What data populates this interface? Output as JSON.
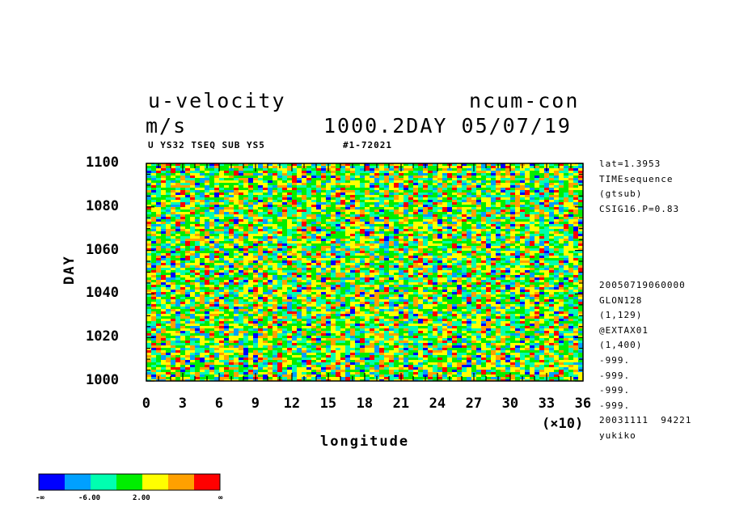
{
  "header": {
    "title_left": "u-velocity",
    "title_right": "ncum-con",
    "units": "m/s",
    "time_stamp": "1000.2DAY 05/07/19",
    "sub_left": "U YS32 TSEQ SUB YS5",
    "sub_right": "#1-72021"
  },
  "side_info": {
    "top": [
      "lat=1.3953",
      "TIMEsequence",
      "(gtsub)",
      "CSIG16.P=0.83"
    ],
    "bottom": [
      "20050719060000",
      "GLON128",
      "(1,129)",
      "@EXTAX01",
      "(1,400)",
      "-999.",
      "-999.",
      "-999.",
      "-999.",
      "20031111  94221",
      "yukiko"
    ]
  },
  "chart_data": {
    "type": "heatmap",
    "title": "u-velocity",
    "xlabel": "longitude",
    "ylabel": "DAY",
    "x_multiplier_label": "(×10)",
    "xlim": [
      0,
      36
    ],
    "ylim": [
      1000,
      1100
    ],
    "x_ticks": [
      0,
      3,
      6,
      9,
      12,
      15,
      18,
      21,
      24,
      27,
      30,
      33,
      36
    ],
    "y_ticks": [
      1000,
      1020,
      1040,
      1060,
      1080,
      1100
    ],
    "x_tick_labels": [
      "0",
      "3",
      "6",
      "9",
      "12",
      "15",
      "18",
      "21",
      "24",
      "27",
      "30",
      "33",
      "36"
    ],
    "y_tick_labels": [
      "1000",
      "1020",
      "1040",
      "1060",
      "1080",
      "1100"
    ],
    "colorbar": {
      "colors": [
        "#0000ff",
        "#00a0ff",
        "#00ffb0",
        "#00ee00",
        "#ffff00",
        "#ffa000",
        "#ff0000"
      ],
      "labels": [
        "-∞",
        "-6.00",
        "2.00",
        "∞"
      ]
    }
  }
}
